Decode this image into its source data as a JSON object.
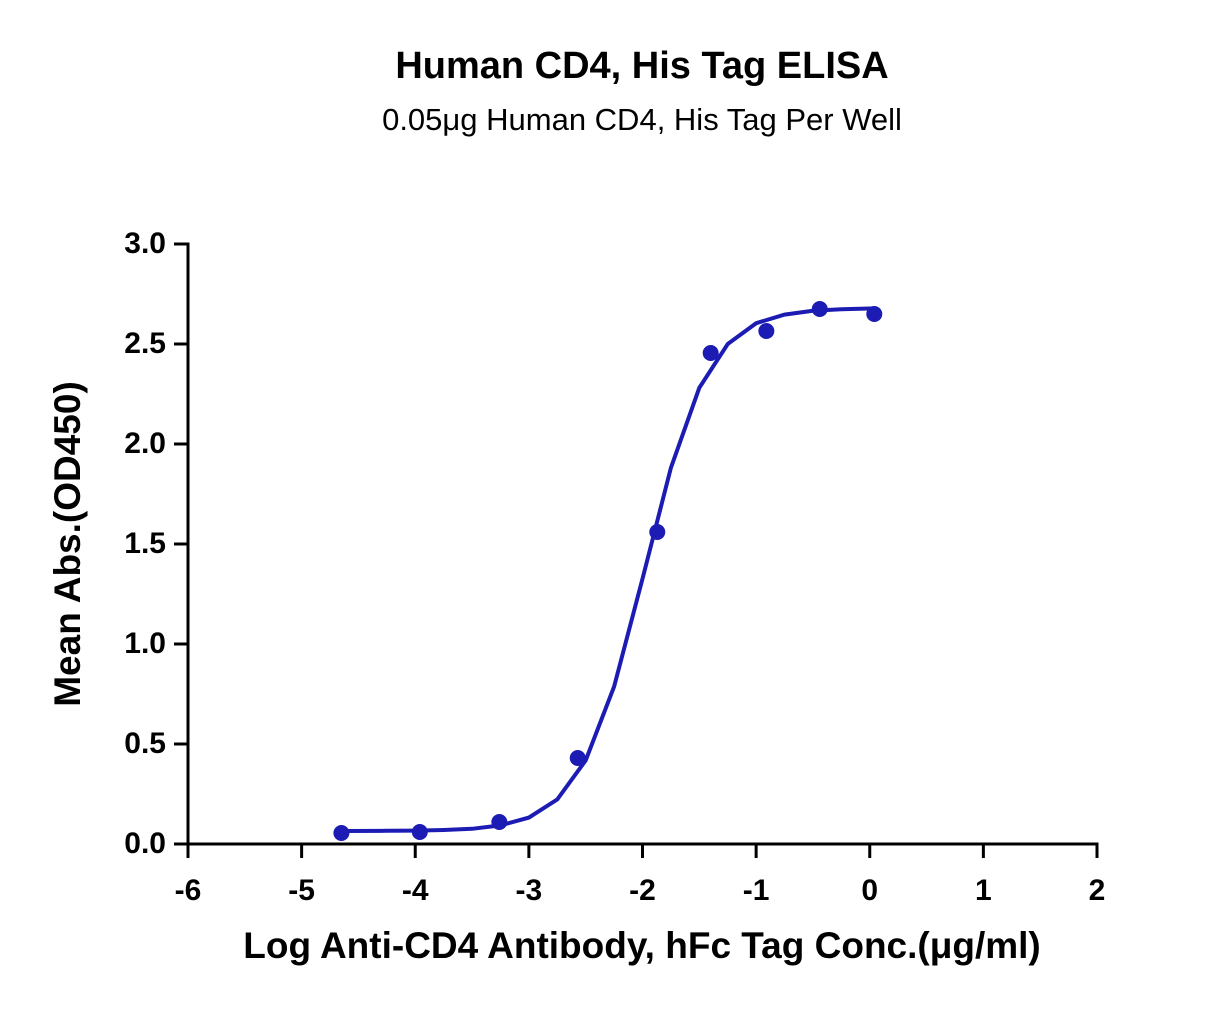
{
  "chart_data": {
    "type": "scatter",
    "title": "Human CD4, His Tag ELISA",
    "subtitle": "0.05μg Human CD4, His Tag Per Well",
    "x_label": "Log Anti-CD4 Antibody, hFc Tag Conc.(μg/ml)",
    "y_label": "Mean Abs.(OD450)",
    "xlim": [
      -6,
      2
    ],
    "xticks": [
      -6,
      -5,
      -4,
      -3,
      -2,
      -1,
      0,
      1,
      2
    ],
    "ylim": [
      0,
      3
    ],
    "yticks": [
      {
        "value": 0,
        "label": "0.0"
      },
      0.5,
      {
        "value": 1,
        "label": "1.0"
      },
      1.5,
      {
        "value": 2,
        "label": "2.0"
      },
      2.5,
      {
        "value": 3,
        "label": "3.0"
      }
    ],
    "grid": false,
    "series": [
      {
        "style": "points",
        "color": "#1c1cb4",
        "x": [
          -4.65,
          -3.96,
          -3.26,
          -2.57,
          -1.87,
          -1.4,
          -0.91,
          -0.44,
          0.04
        ],
        "values": [
          0.055,
          0.06,
          0.11,
          0.43,
          1.56,
          2.455,
          2.565,
          2.675,
          2.65
        ]
      },
      {
        "style": "line",
        "color": "#1c1cb4",
        "x": [
          -4.65,
          -4.25,
          -4.0,
          -3.75,
          -3.5,
          -3.25,
          -3.0,
          -2.75,
          -2.5,
          -2.25,
          -2.0,
          -1.75,
          -1.5,
          -1.25,
          -1.0,
          -0.75,
          -0.5,
          -0.25,
          0.04
        ],
        "values": [
          0.065,
          0.066,
          0.067,
          0.07,
          0.076,
          0.093,
          0.132,
          0.223,
          0.418,
          0.787,
          1.326,
          1.881,
          2.281,
          2.5,
          2.604,
          2.647,
          2.666,
          2.674,
          2.678
        ]
      }
    ]
  }
}
